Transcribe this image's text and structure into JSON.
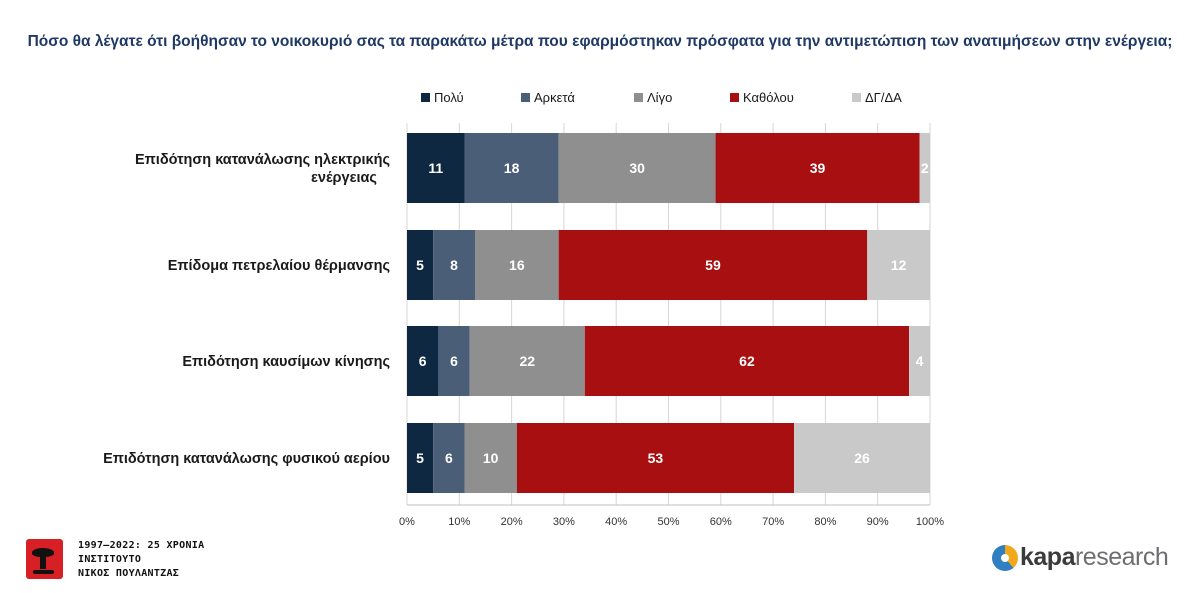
{
  "title": "Πόσο θα λέγατε ότι βοήθησαν το νοικοκυριό σας τα παρακάτω μέτρα που εφαρμόστηκαν πρόσφατα για την αντιμετώπιση των ανατιμήσεων στην ενέργεια;",
  "chart_data": {
    "type": "bar",
    "orientation": "horizontal",
    "stacked": true,
    "categories": [
      [
        "Επιδότηση κατανάλωσης ηλεκτρικής",
        "ενέργειας"
      ],
      [
        "Επίδομα πετρελαίου θέρμανσης"
      ],
      [
        "Επιδότηση καυσίμων κίνησης"
      ],
      [
        "Επιδότηση κατανάλωσης φυσικού αερίου"
      ]
    ],
    "series": [
      {
        "name": "Πολύ",
        "color": "#0e2841",
        "label_color": "#ffffff",
        "values": [
          11,
          5,
          6,
          5
        ]
      },
      {
        "name": "Αρκετά",
        "color": "#4a5e77",
        "label_color": "#ffffff",
        "values": [
          18,
          8,
          6,
          6
        ]
      },
      {
        "name": "Λίγο",
        "color": "#8f8f8f",
        "label_color": "#ffffff",
        "values": [
          30,
          16,
          22,
          10
        ]
      },
      {
        "name": "Καθόλου",
        "color": "#a80f10",
        "label_color": "#ffffff",
        "values": [
          39,
          59,
          62,
          53
        ]
      },
      {
        "name": "ΔΓ/ΔΑ",
        "color": "#c9c9c9",
        "label_color": "#ffffff",
        "values": [
          2,
          12,
          4,
          26
        ]
      }
    ],
    "xlim": [
      0,
      100
    ],
    "xticks": [
      "0%",
      "10%",
      "20%",
      "30%",
      "40%",
      "50%",
      "60%",
      "70%",
      "80%",
      "90%",
      "100%"
    ],
    "grid": true,
    "legend_position": "top"
  },
  "footer": {
    "institute": {
      "line1": "1997–2022: 25 ΧΡΟΝΙΑ",
      "line2": "ΙΝΣΤΙΤΟΥΤΟ",
      "line3": "ΝΙΚΟΣ ΠΟΥΛΑΝΤΖΑΣ"
    },
    "brand": {
      "bold": "kapa",
      "rest": "research"
    }
  }
}
